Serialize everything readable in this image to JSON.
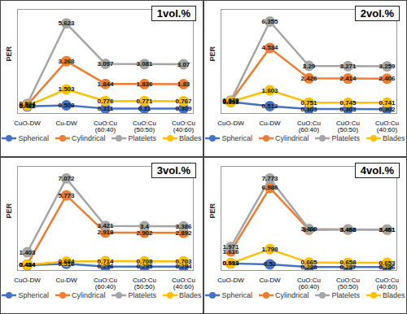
{
  "chart_data": [
    {
      "type": "line",
      "title": "1vol.%",
      "y_label": "PER",
      "categories": [
        "CuO-DW",
        "Cu-DW",
        "CuO:Cu (60:40)",
        "CuO:Cu (50:50)",
        "CuO:Cu (40:60)"
      ],
      "series": [
        {
          "name": "Spherical",
          "color": "#4472c4",
          "values": [
            0.442,
            0.508,
            0.311,
            0.31,
            0.309
          ]
        },
        {
          "name": "Cylindrical",
          "color": "#ed7d31",
          "values": [
            0.529,
            3.268,
            1.844,
            1.836,
            1.83
          ]
        },
        {
          "name": "Platelets",
          "color": "#a5a5a5",
          "values": [
            0.594,
            5.623,
            3.097,
            3.081,
            3.07
          ]
        },
        {
          "name": "Blades",
          "color": "#ffc000",
          "values": [
            0.482,
            1.503,
            0.776,
            0.771,
            0.767
          ]
        }
      ],
      "ylim": [
        0,
        6.5
      ],
      "yticks": [],
      "tick_labels": "x",
      "data_labels": true,
      "legend": "bottom",
      "marker": "circle"
    },
    {
      "type": "line",
      "title": "2vol.%",
      "y_label": "PER",
      "categories": [
        "CuO-DW",
        "Cu-DW",
        "CuO:Cu (60:40)",
        "CuO:Cu (50:50)",
        "CuO:Cu (40:60)"
      ],
      "series": [
        {
          "name": "Spherical",
          "color": "#4472c4",
          "values": [
            0.795,
            0.512,
            0.303,
            0.303,
            0.302
          ]
        },
        {
          "name": "Cylindrical",
          "color": "#ed7d31",
          "values": [
            0.842,
            4.534,
            2.426,
            2.414,
            2.406
          ]
        },
        {
          "name": "Platelets",
          "color": "#a5a5a5",
          "values": [
            0.879,
            6.355,
            3.29,
            3.271,
            3.259
          ]
        },
        {
          "name": "Blades",
          "color": "#ffc000",
          "values": [
            0.817,
            1.603,
            0.751,
            0.745,
            0.741
          ]
        }
      ],
      "ylim": [
        0,
        7.2
      ],
      "yticks": [],
      "tick_labels": "x",
      "data_labels": true,
      "legend": "bottom",
      "marker": "circle"
    },
    {
      "type": "line",
      "title": "3vol.%",
      "y_label": "PER",
      "categories": [
        "CuO-DW",
        "Cu-DW",
        "CuO:Cu (60:40)",
        "CuO:Cu (50:50)",
        "CuO:Cu (40:60)"
      ],
      "series": [
        {
          "name": "Spherical",
          "color": "#4472c4",
          "values": [
            0.414,
            0.516,
            0.296,
            0.295,
            0.294
          ]
        },
        {
          "name": "Cylindrical",
          "color": "#ed7d31",
          "values": [
            0.454,
            5.773,
            2.918,
            2.902,
            2.892
          ]
        },
        {
          "name": "Platelets",
          "color": "#a5a5a5",
          "values": [
            1.403,
            7.072,
            3.421,
            3.4,
            3.386
          ]
        },
        {
          "name": "Blades",
          "color": "#ffc000",
          "values": [
            0.444,
            0.684,
            0.714,
            0.708,
            0.703
          ]
        }
      ],
      "ylim": [
        0,
        8
      ],
      "yticks": [],
      "tick_labels": "x",
      "data_labels": true,
      "legend": "bottom",
      "marker": "circle"
    },
    {
      "type": "line",
      "title": "4vol.%",
      "y_label": "PER",
      "categories": [
        "CuO-DW",
        "Cu-DW",
        "CuO:Cu (60:40)",
        "CuO:Cu (50:50)",
        "CuO:Cu (40:60)"
      ],
      "series": [
        {
          "name": "Spherical",
          "color": "#4472c4",
          "values": [
            0.593,
            0.52,
            0.288,
            0.287,
            0.286
          ]
        },
        {
          "name": "Cylindrical",
          "color": "#ed7d31",
          "values": [
            1.616,
            6.986,
            3.44,
            3.458,
            3.451
          ]
        },
        {
          "name": "Platelets",
          "color": "#a5a5a5",
          "values": [
            1.971,
            7.773,
            3.499,
            3.468,
            3.461
          ]
        },
        {
          "name": "Blades",
          "color": "#ffc000",
          "values": [
            0.613,
            1.798,
            0.665,
            0.658,
            0.653
          ]
        }
      ],
      "ylim": [
        0,
        8.8
      ],
      "yticks": [],
      "tick_labels": "x",
      "data_labels": true,
      "legend": "bottom",
      "marker": "circle"
    }
  ]
}
